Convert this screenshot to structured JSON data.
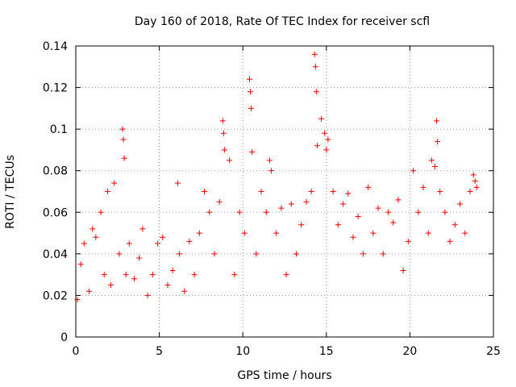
{
  "chart_data": {
    "type": "scatter",
    "title": "Day 160 of 2018, Rate Of TEC Index for receiver scfl",
    "xlabel": "GPS time / hours",
    "ylabel": "ROTI / TECUs",
    "xlim": [
      0,
      25
    ],
    "ylim": [
      0,
      0.14
    ],
    "xticks": [
      0,
      5,
      10,
      15,
      20,
      25
    ],
    "xtick_labels": [
      "0",
      "5",
      "10",
      "15",
      "20",
      "25"
    ],
    "yticks": [
      0,
      0.02,
      0.04,
      0.06,
      0.08,
      0.1,
      0.12,
      0.14
    ],
    "ytick_labels": [
      "0",
      "0.02",
      "0.04",
      "0.06",
      "0.08",
      "0.1",
      "0.12",
      "0.14"
    ],
    "grid": true,
    "marker": "+",
    "color": "#ff0000",
    "series": [
      {
        "name": "ROTI",
        "x": [
          0.1,
          0.3,
          0.5,
          0.8,
          1.0,
          1.2,
          1.5,
          1.7,
          1.9,
          2.1,
          2.3,
          2.6,
          2.8,
          2.85,
          2.9,
          3.0,
          3.2,
          3.5,
          3.8,
          4.0,
          4.3,
          4.6,
          4.9,
          5.2,
          5.5,
          5.8,
          6.1,
          6.2,
          6.5,
          6.8,
          7.1,
          7.4,
          7.7,
          8.0,
          8.3,
          8.6,
          8.8,
          8.85,
          8.9,
          9.2,
          9.5,
          9.8,
          10.1,
          10.4,
          10.45,
          10.5,
          10.55,
          10.8,
          11.1,
          11.4,
          11.6,
          11.7,
          12.0,
          12.3,
          12.6,
          12.9,
          13.2,
          13.5,
          13.8,
          14.1,
          14.3,
          14.35,
          14.4,
          14.45,
          14.7,
          14.9,
          15.0,
          15.1,
          15.4,
          15.7,
          16.0,
          16.3,
          16.6,
          16.9,
          17.2,
          17.5,
          17.8,
          18.1,
          18.4,
          18.7,
          19.0,
          19.3,
          19.6,
          19.9,
          20.2,
          20.5,
          20.8,
          21.1,
          21.3,
          21.5,
          21.6,
          21.65,
          21.8,
          22.1,
          22.4,
          22.7,
          23.0,
          23.3,
          23.6,
          23.8,
          23.9,
          24.0
        ],
        "y": [
          0.018,
          0.035,
          0.045,
          0.022,
          0.052,
          0.048,
          0.06,
          0.03,
          0.07,
          0.025,
          0.074,
          0.04,
          0.1,
          0.095,
          0.086,
          0.03,
          0.045,
          0.028,
          0.038,
          0.052,
          0.02,
          0.03,
          0.045,
          0.048,
          0.025,
          0.032,
          0.074,
          0.04,
          0.022,
          0.046,
          0.03,
          0.05,
          0.07,
          0.06,
          0.04,
          0.065,
          0.104,
          0.098,
          0.09,
          0.085,
          0.03,
          0.06,
          0.05,
          0.124,
          0.118,
          0.11,
          0.089,
          0.04,
          0.07,
          0.06,
          0.085,
          0.08,
          0.05,
          0.062,
          0.03,
          0.064,
          0.04,
          0.054,
          0.065,
          0.07,
          0.136,
          0.13,
          0.118,
          0.092,
          0.105,
          0.098,
          0.09,
          0.095,
          0.07,
          0.054,
          0.064,
          0.069,
          0.048,
          0.058,
          0.04,
          0.072,
          0.05,
          0.062,
          0.04,
          0.06,
          0.055,
          0.066,
          0.032,
          0.046,
          0.08,
          0.06,
          0.072,
          0.05,
          0.085,
          0.082,
          0.104,
          0.094,
          0.07,
          0.06,
          0.046,
          0.054,
          0.064,
          0.05,
          0.07,
          0.078,
          0.075,
          0.072
        ]
      }
    ]
  }
}
